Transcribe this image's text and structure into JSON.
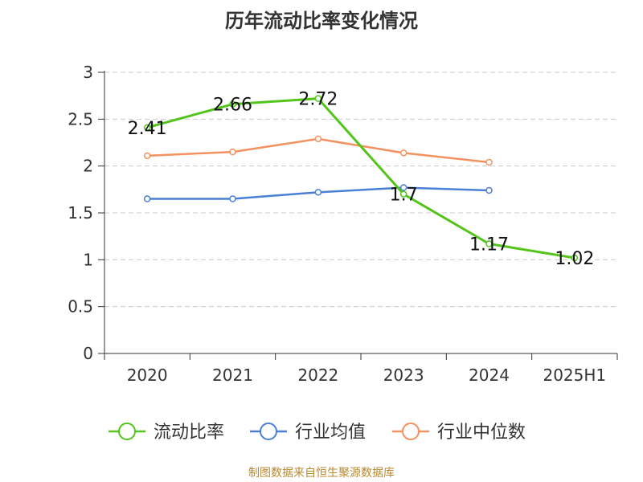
{
  "chart_data": {
    "type": "line",
    "title": "历年流动比率变化情况",
    "categories": [
      "2020",
      "2021",
      "2022",
      "2023",
      "2024",
      "2025H1"
    ],
    "ylim": [
      0,
      3
    ],
    "yticks": [
      "0",
      "0.5",
      "1",
      "1.5",
      "2",
      "2.5",
      "3"
    ],
    "grid": true,
    "legend_position": "bottom",
    "series": [
      {
        "name": "流动比率",
        "color": "#52c41a",
        "values": [
          2.41,
          2.66,
          2.72,
          1.7,
          1.17,
          1.02
        ],
        "labels": [
          "2.41",
          "2.66",
          "2.72",
          "1.7",
          "1.17",
          "1.02"
        ]
      },
      {
        "name": "行业均值",
        "color": "#4a7fd6",
        "values": [
          1.65,
          1.65,
          1.72,
          1.77,
          1.74,
          null
        ]
      },
      {
        "name": "行业中位数",
        "color": "#f4915e",
        "values": [
          2.11,
          2.15,
          2.29,
          2.14,
          2.04,
          null
        ]
      }
    ],
    "source": "制图数据来自恒生聚源数据库"
  }
}
